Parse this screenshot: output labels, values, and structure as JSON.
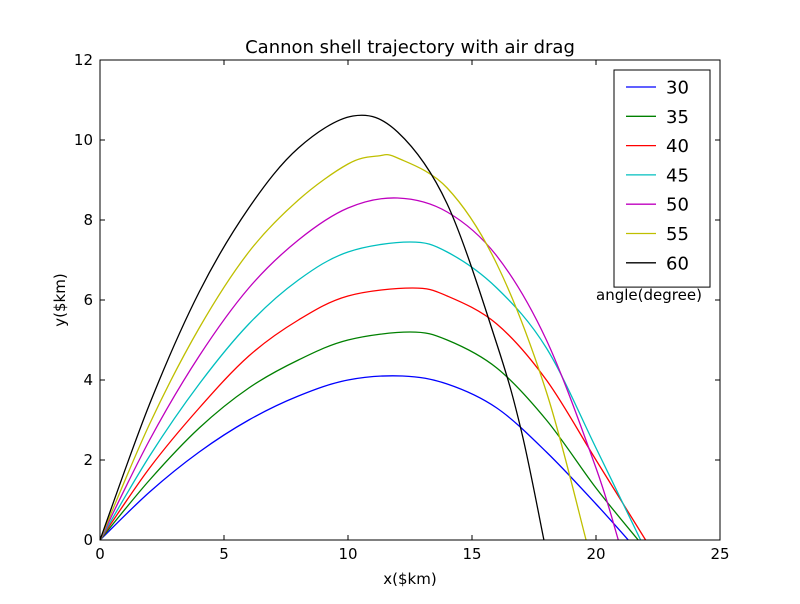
{
  "chart_data": {
    "type": "line",
    "title": "Cannon shell trajectory with air drag",
    "xlabel": "x($km)",
    "ylabel": "y($km)",
    "xlim": [
      0,
      25
    ],
    "ylim": [
      0,
      12
    ],
    "x_ticks": [
      "0",
      "5",
      "10",
      "15",
      "20",
      "25"
    ],
    "y_ticks": [
      "0",
      "2",
      "4",
      "6",
      "8",
      "10",
      "12"
    ],
    "legend_position": "top-right",
    "legend_annotation": "angle(degree)",
    "series": [
      {
        "name": "30",
        "color": "#0000ff",
        "x": [
          0,
          2,
          4,
          6,
          8,
          10,
          12.2,
          14,
          16,
          18,
          20,
          21.3
        ],
        "y": [
          0,
          1.2,
          2.2,
          3.0,
          3.6,
          4.0,
          4.1,
          3.9,
          3.3,
          2.2,
          0.9,
          0
        ]
      },
      {
        "name": "35",
        "color": "#008000",
        "x": [
          0,
          2,
          4,
          6,
          8,
          10,
          12.5,
          14,
          16,
          18,
          20,
          21.7
        ],
        "y": [
          0,
          1.5,
          2.8,
          3.8,
          4.5,
          5.0,
          5.2,
          5.0,
          4.3,
          3.0,
          1.3,
          0
        ]
      },
      {
        "name": "40",
        "color": "#ff0000",
        "x": [
          0,
          2,
          4,
          6,
          8,
          10,
          12.6,
          14,
          16,
          18,
          20,
          22.0
        ],
        "y": [
          0,
          1.8,
          3.3,
          4.6,
          5.5,
          6.1,
          6.3,
          6.1,
          5.4,
          4.0,
          2.0,
          0
        ]
      },
      {
        "name": "45",
        "color": "#00bfbf",
        "x": [
          0,
          2,
          4,
          6,
          8,
          10,
          12.5,
          14,
          16,
          18,
          20,
          21.8
        ],
        "y": [
          0,
          2.1,
          3.9,
          5.4,
          6.5,
          7.2,
          7.45,
          7.2,
          6.3,
          4.8,
          2.3,
          0
        ]
      },
      {
        "name": "50",
        "color": "#bf00bf",
        "x": [
          0,
          2,
          4,
          6,
          8,
          10,
          12.0,
          14,
          16,
          18,
          20,
          20.9
        ],
        "y": [
          0,
          2.5,
          4.6,
          6.3,
          7.5,
          8.3,
          8.55,
          8.2,
          7.1,
          5.0,
          1.8,
          0
        ]
      },
      {
        "name": "55",
        "color": "#bfbf00",
        "x": [
          0,
          2,
          4,
          6,
          8,
          10,
          11.2,
          12,
          14,
          16,
          18,
          19.6
        ],
        "y": [
          0,
          2.9,
          5.3,
          7.2,
          8.5,
          9.4,
          9.6,
          9.55,
          8.8,
          6.9,
          3.7,
          0
        ]
      },
      {
        "name": "60",
        "color": "#000000",
        "x": [
          0,
          2,
          4,
          6,
          8,
          10.2,
          12,
          14,
          16,
          17,
          17.9
        ],
        "y": [
          0,
          3.4,
          6.2,
          8.3,
          9.8,
          10.6,
          10.2,
          8.4,
          4.9,
          2.7,
          0
        ]
      }
    ]
  }
}
